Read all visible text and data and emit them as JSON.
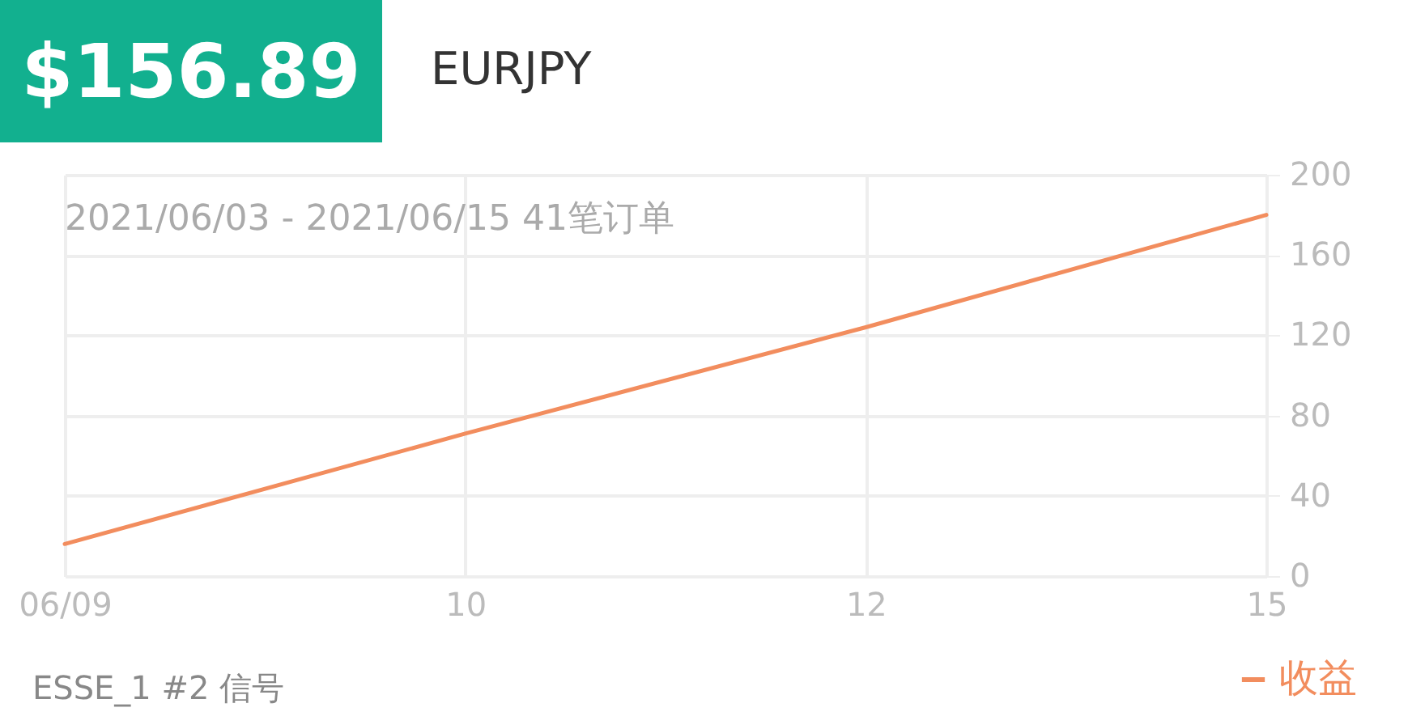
{
  "chart_data": {
    "type": "line",
    "title": "$156.89",
    "subtitle": "EURJPY",
    "annotations": [
      "2021/06/03 - 2021/06/15 41笔订单",
      "ESSE_1 #2 信号"
    ],
    "categories": [
      "06/09",
      "10",
      "12",
      "15"
    ],
    "series": [
      {
        "name": "收益",
        "color": "#f28d5e",
        "values": [
          16,
          71,
          124,
          180
        ]
      }
    ],
    "ylim": [
      0,
      200
    ],
    "yticks": [
      0,
      40,
      80,
      120,
      160,
      200
    ],
    "grid": true,
    "legend": "bottom right",
    "marker": "none",
    "line_style": "solid"
  }
}
